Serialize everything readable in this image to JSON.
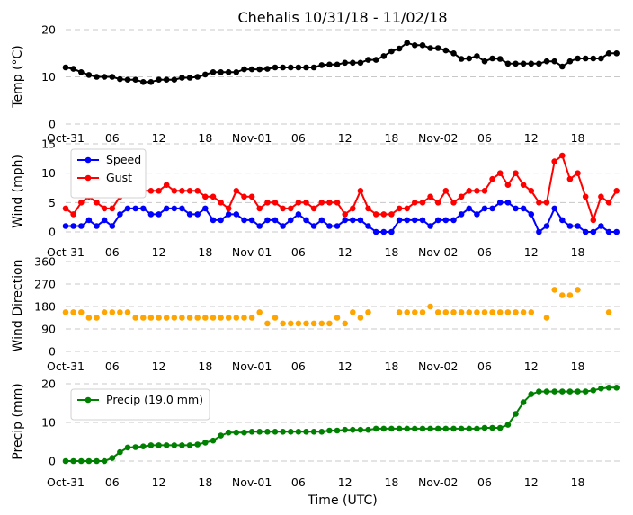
{
  "chart_data": {
    "type": "line",
    "title": "Chehalis 10/31/18 - 11/02/18",
    "xlabel": "Time (UTC)",
    "x_tick_labels": [
      "Oct-31",
      "06",
      "12",
      "18",
      "Nov-01",
      "06",
      "12",
      "18",
      "Nov-02",
      "06",
      "12",
      "18"
    ],
    "x_tick_hours": [
      0,
      6,
      12,
      18,
      24,
      30,
      36,
      42,
      48,
      54,
      60,
      66
    ],
    "x_range_hours": [
      0,
      71.5
    ],
    "x_step_hours": 1,
    "panels": [
      {
        "ylabel": "Temp (°C)",
        "ylim": [
          0,
          20
        ],
        "yticks": [
          0,
          10,
          20
        ],
        "grid": true,
        "legend": null,
        "series": [
          {
            "color": "#000000",
            "values": [
              12,
              11.7,
              11,
              10.4,
              10,
              10,
              10,
              9.5,
              9.4,
              9.4,
              8.9,
              8.9,
              9.4,
              9.4,
              9.4,
              9.8,
              9.8,
              10,
              10.5,
              11,
              11,
              11,
              11,
              11.6,
              11.6,
              11.6,
              11.7,
              12,
              12,
              12,
              12,
              12,
              12,
              12.5,
              12.6,
              12.6,
              13,
              13,
              13,
              13.6,
              13.6,
              14.4,
              15.4,
              16,
              17.2,
              16.7,
              16.7,
              16.1,
              16.1,
              15.6,
              15,
              13.8,
              13.9,
              14.4,
              13.3,
              13.9,
              13.8,
              12.8,
              12.8,
              12.8,
              12.8,
              12.8,
              13.3,
              13.3,
              12.2,
              13.3,
              13.9,
              13.9,
              13.9,
              13.9,
              15,
              15
            ]
          }
        ]
      },
      {
        "ylabel": "Wind (mph)",
        "ylim": [
          0,
          15
        ],
        "yticks": [
          0,
          5,
          10,
          15
        ],
        "grid": true,
        "legend": "upper-left",
        "series": [
          {
            "name": "Speed",
            "color": "#0000ff",
            "values": [
              1,
              1,
              1,
              2,
              1,
              2,
              1,
              3,
              4,
              4,
              4,
              3,
              3,
              4,
              4,
              4,
              3,
              3,
              4,
              2,
              2,
              3,
              3,
              2,
              2,
              1,
              2,
              2,
              1,
              2,
              3,
              2,
              1,
              2,
              1,
              1,
              2,
              2,
              2,
              1,
              0,
              0,
              0,
              2,
              2,
              2,
              2,
              1,
              2,
              2,
              2,
              3,
              4,
              3,
              4,
              4,
              5,
              5,
              4,
              4,
              3,
              0,
              1,
              4,
              2,
              1,
              1,
              0,
              0,
              1,
              0,
              0
            ]
          },
          {
            "name": "Gust",
            "color": "#ff0000",
            "values": [
              4,
              3,
              5,
              6,
              5,
              4,
              4,
              6,
              7,
              7,
              7,
              7,
              7,
              8,
              7,
              7,
              7,
              7,
              6,
              6,
              5,
              4,
              7,
              6,
              6,
              4,
              5,
              5,
              4,
              4,
              5,
              5,
              4,
              5,
              5,
              5,
              3,
              4,
              7,
              4,
              3,
              3,
              3,
              4,
              4,
              5,
              5,
              6,
              5,
              7,
              5,
              6,
              7,
              7,
              7,
              9,
              10,
              8,
              10,
              8,
              7,
              5,
              5,
              12,
              13,
              9,
              10,
              6,
              2,
              6,
              5,
              7
            ]
          }
        ]
      },
      {
        "ylabel": "Wind Direction",
        "ylim": [
          0,
          360
        ],
        "yticks": [
          0,
          90,
          180,
          270,
          360
        ],
        "grid": true,
        "legend": null,
        "series": [
          {
            "color": "#ffa500",
            "line": false,
            "values": [
              157,
              157,
              157,
              135,
              135,
              157,
              157,
              157,
              157,
              135,
              135,
              135,
              135,
              135,
              135,
              135,
              135,
              135,
              135,
              135,
              135,
              135,
              135,
              135,
              135,
              157,
              112,
              135,
              112,
              112,
              112,
              112,
              112,
              112,
              112,
              135,
              112,
              157,
              135,
              157,
              null,
              null,
              null,
              157,
              157,
              157,
              157,
              180,
              157,
              157,
              157,
              157,
              157,
              157,
              157,
              157,
              157,
              157,
              157,
              157,
              157,
              null,
              135,
              247,
              225,
              225,
              247,
              null,
              null,
              null,
              157,
              null
            ]
          }
        ]
      },
      {
        "ylabel": "Precip (mm)",
        "ylim": [
          0,
          20
        ],
        "yticks": [
          0,
          10,
          20
        ],
        "grid": true,
        "legend": "upper-left",
        "series": [
          {
            "name": "Precip (19.0 mm)",
            "color": "#008000",
            "values": [
              0,
              0,
              0,
              0,
              0,
              0,
              0.8,
              2.3,
              3.5,
              3.6,
              3.8,
              4.1,
              4.1,
              4.1,
              4.1,
              4.1,
              4.1,
              4.3,
              4.8,
              5.3,
              6.6,
              7.4,
              7.4,
              7.4,
              7.6,
              7.6,
              7.6,
              7.6,
              7.6,
              7.6,
              7.6,
              7.6,
              7.6,
              7.6,
              7.9,
              7.9,
              8.1,
              8.1,
              8.1,
              8.1,
              8.4,
              8.4,
              8.4,
              8.4,
              8.4,
              8.4,
              8.4,
              8.4,
              8.4,
              8.4,
              8.4,
              8.4,
              8.4,
              8.4,
              8.6,
              8.6,
              8.6,
              9.4,
              12.2,
              15.2,
              17.3,
              18.0,
              18.0,
              18.0,
              18.0,
              18.0,
              18.0,
              18.0,
              18.3,
              18.8,
              19.0,
              19.0
            ]
          }
        ]
      }
    ]
  }
}
